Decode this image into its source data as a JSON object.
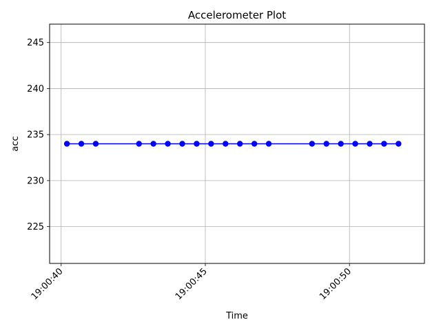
{
  "chart_data": {
    "type": "line",
    "title": "Accelerometer Plot",
    "xlabel": "Time",
    "ylabel": "acc",
    "grid": true,
    "x_tick_labels": [
      "19:00:40",
      "19:00:45",
      "19:00:50"
    ],
    "x_tick_values": [
      40.0,
      45.0,
      50.0
    ],
    "y_ticks": [
      225,
      230,
      235,
      240,
      245
    ],
    "xlim": [
      39.6,
      52.6
    ],
    "ylim": [
      221,
      247
    ],
    "series": [
      {
        "color": "#0000ff",
        "marker": "circle",
        "x": [
          40.2,
          40.7,
          41.2,
          42.7,
          43.2,
          43.7,
          44.2,
          44.7,
          45.2,
          45.7,
          46.2,
          46.7,
          47.2,
          48.7,
          49.2,
          49.7,
          50.2,
          50.7,
          51.2,
          51.7
        ],
        "values": [
          234,
          234,
          234,
          234,
          234,
          234,
          234,
          234,
          234,
          234,
          234,
          234,
          234,
          234,
          234,
          234,
          234,
          234,
          234,
          234
        ]
      }
    ]
  }
}
